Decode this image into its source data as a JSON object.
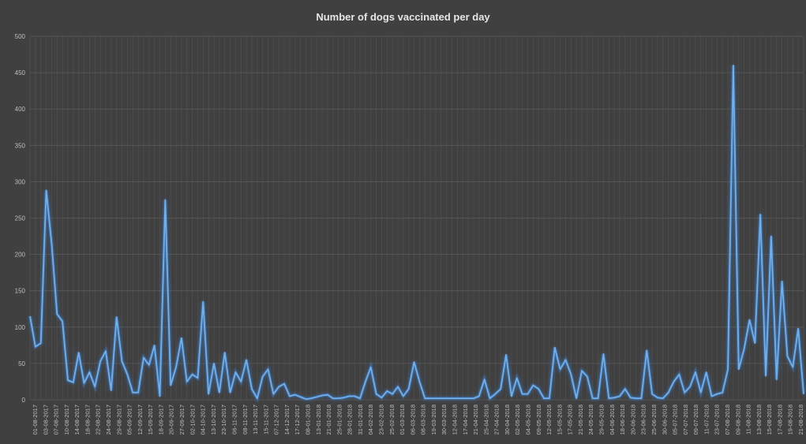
{
  "chart_data": {
    "type": "line",
    "title": "Number  of dogs vaccinated per day",
    "xlabel": "",
    "ylabel": "",
    "ylim": [
      0,
      500
    ],
    "yticks": [
      0,
      50,
      100,
      150,
      200,
      250,
      300,
      350,
      400,
      450,
      500
    ],
    "grid": true,
    "legend": "none",
    "line_color": "#5b9bd5",
    "background_color": "#404040",
    "x_tick_labels": [
      "01-08-2017",
      "03-08-2017",
      "07-08-2017",
      "10-08-2017",
      "14-08-2017",
      "18-08-2017",
      "22-08-2017",
      "24-08-2017",
      "29-08-2017",
      "05-09-2017",
      "12-09-2017",
      "15-09-2017",
      "18-09-2017",
      "20-09-2017",
      "27-09-2017",
      "02-10-2017",
      "04-10-2017",
      "13-10-2017",
      "23-10-2017",
      "06-11-2017",
      "08-11-2017",
      "13-11-2017",
      "15-11-2017",
      "07-12-2017",
      "14-12-2017",
      "17-12-2017",
      "08-01-2018",
      "13-01-2018",
      "21-01-2018",
      "25-01-2018",
      "28-01-2018",
      "31-01-2018",
      "04-02-2018",
      "23-02-2018",
      "25-02-2018",
      "01-03-2018",
      "06-03-2018",
      "08-03-2018",
      "19-03-2018",
      "30-03-2018",
      "12-04-2018",
      "17-04-2018",
      "21-04-2018",
      "25-04-2018",
      "27-04-2018",
      "30-04-2018",
      "02-05-2018",
      "04-05-2018",
      "09-05-2018",
      "12-05-2018",
      "15-05-2018",
      "17-05-2018",
      "21-05-2018",
      "24-05-2018",
      "29-05-2018",
      "04-06-2018",
      "18-06-2018",
      "20-06-2018",
      "23-06-2018",
      "25-06-2018",
      "30-06-2018",
      "05-07-2018",
      "07-07-2018",
      "09-07-2018",
      "11-07-2018",
      "23-07-2018",
      "07-08-2018",
      "09-08-2018",
      "11-08-2018",
      "13-08-2018",
      "15-08-2018",
      "17-08-2018",
      "19-08-2018",
      "21-08-2018"
    ],
    "series": [
      {
        "values": [
          115,
          73,
          78,
          288,
          215,
          118,
          108,
          27,
          24,
          65,
          23,
          38,
          18,
          53,
          67,
          13,
          114,
          53,
          35,
          10,
          10,
          58,
          48,
          75,
          5,
          275,
          20,
          45,
          85,
          25,
          35,
          30,
          135,
          8,
          50,
          10,
          65,
          10,
          38,
          25,
          55,
          15,
          2,
          32,
          42,
          8,
          18,
          22,
          5,
          7,
          4,
          1,
          2,
          4,
          6,
          7,
          2,
          2,
          3,
          5,
          5,
          2,
          25,
          45,
          8,
          3,
          12,
          8,
          18,
          5,
          15,
          52,
          25,
          2,
          2,
          2,
          2,
          2,
          2,
          2,
          2,
          2,
          2,
          5,
          28,
          2,
          8,
          15,
          62,
          5,
          30,
          8,
          8,
          20,
          15,
          2,
          2,
          72,
          42,
          55,
          35,
          2,
          40,
          32,
          2,
          2,
          63,
          2,
          3,
          5,
          15,
          3,
          2,
          2,
          68,
          8,
          3,
          2,
          10,
          25,
          35,
          10,
          18,
          38,
          10,
          38,
          5,
          8,
          10,
          42,
          460,
          42,
          70,
          110,
          78,
          255,
          33,
          225,
          28,
          163,
          60,
          45,
          98,
          8
        ]
      }
    ]
  }
}
